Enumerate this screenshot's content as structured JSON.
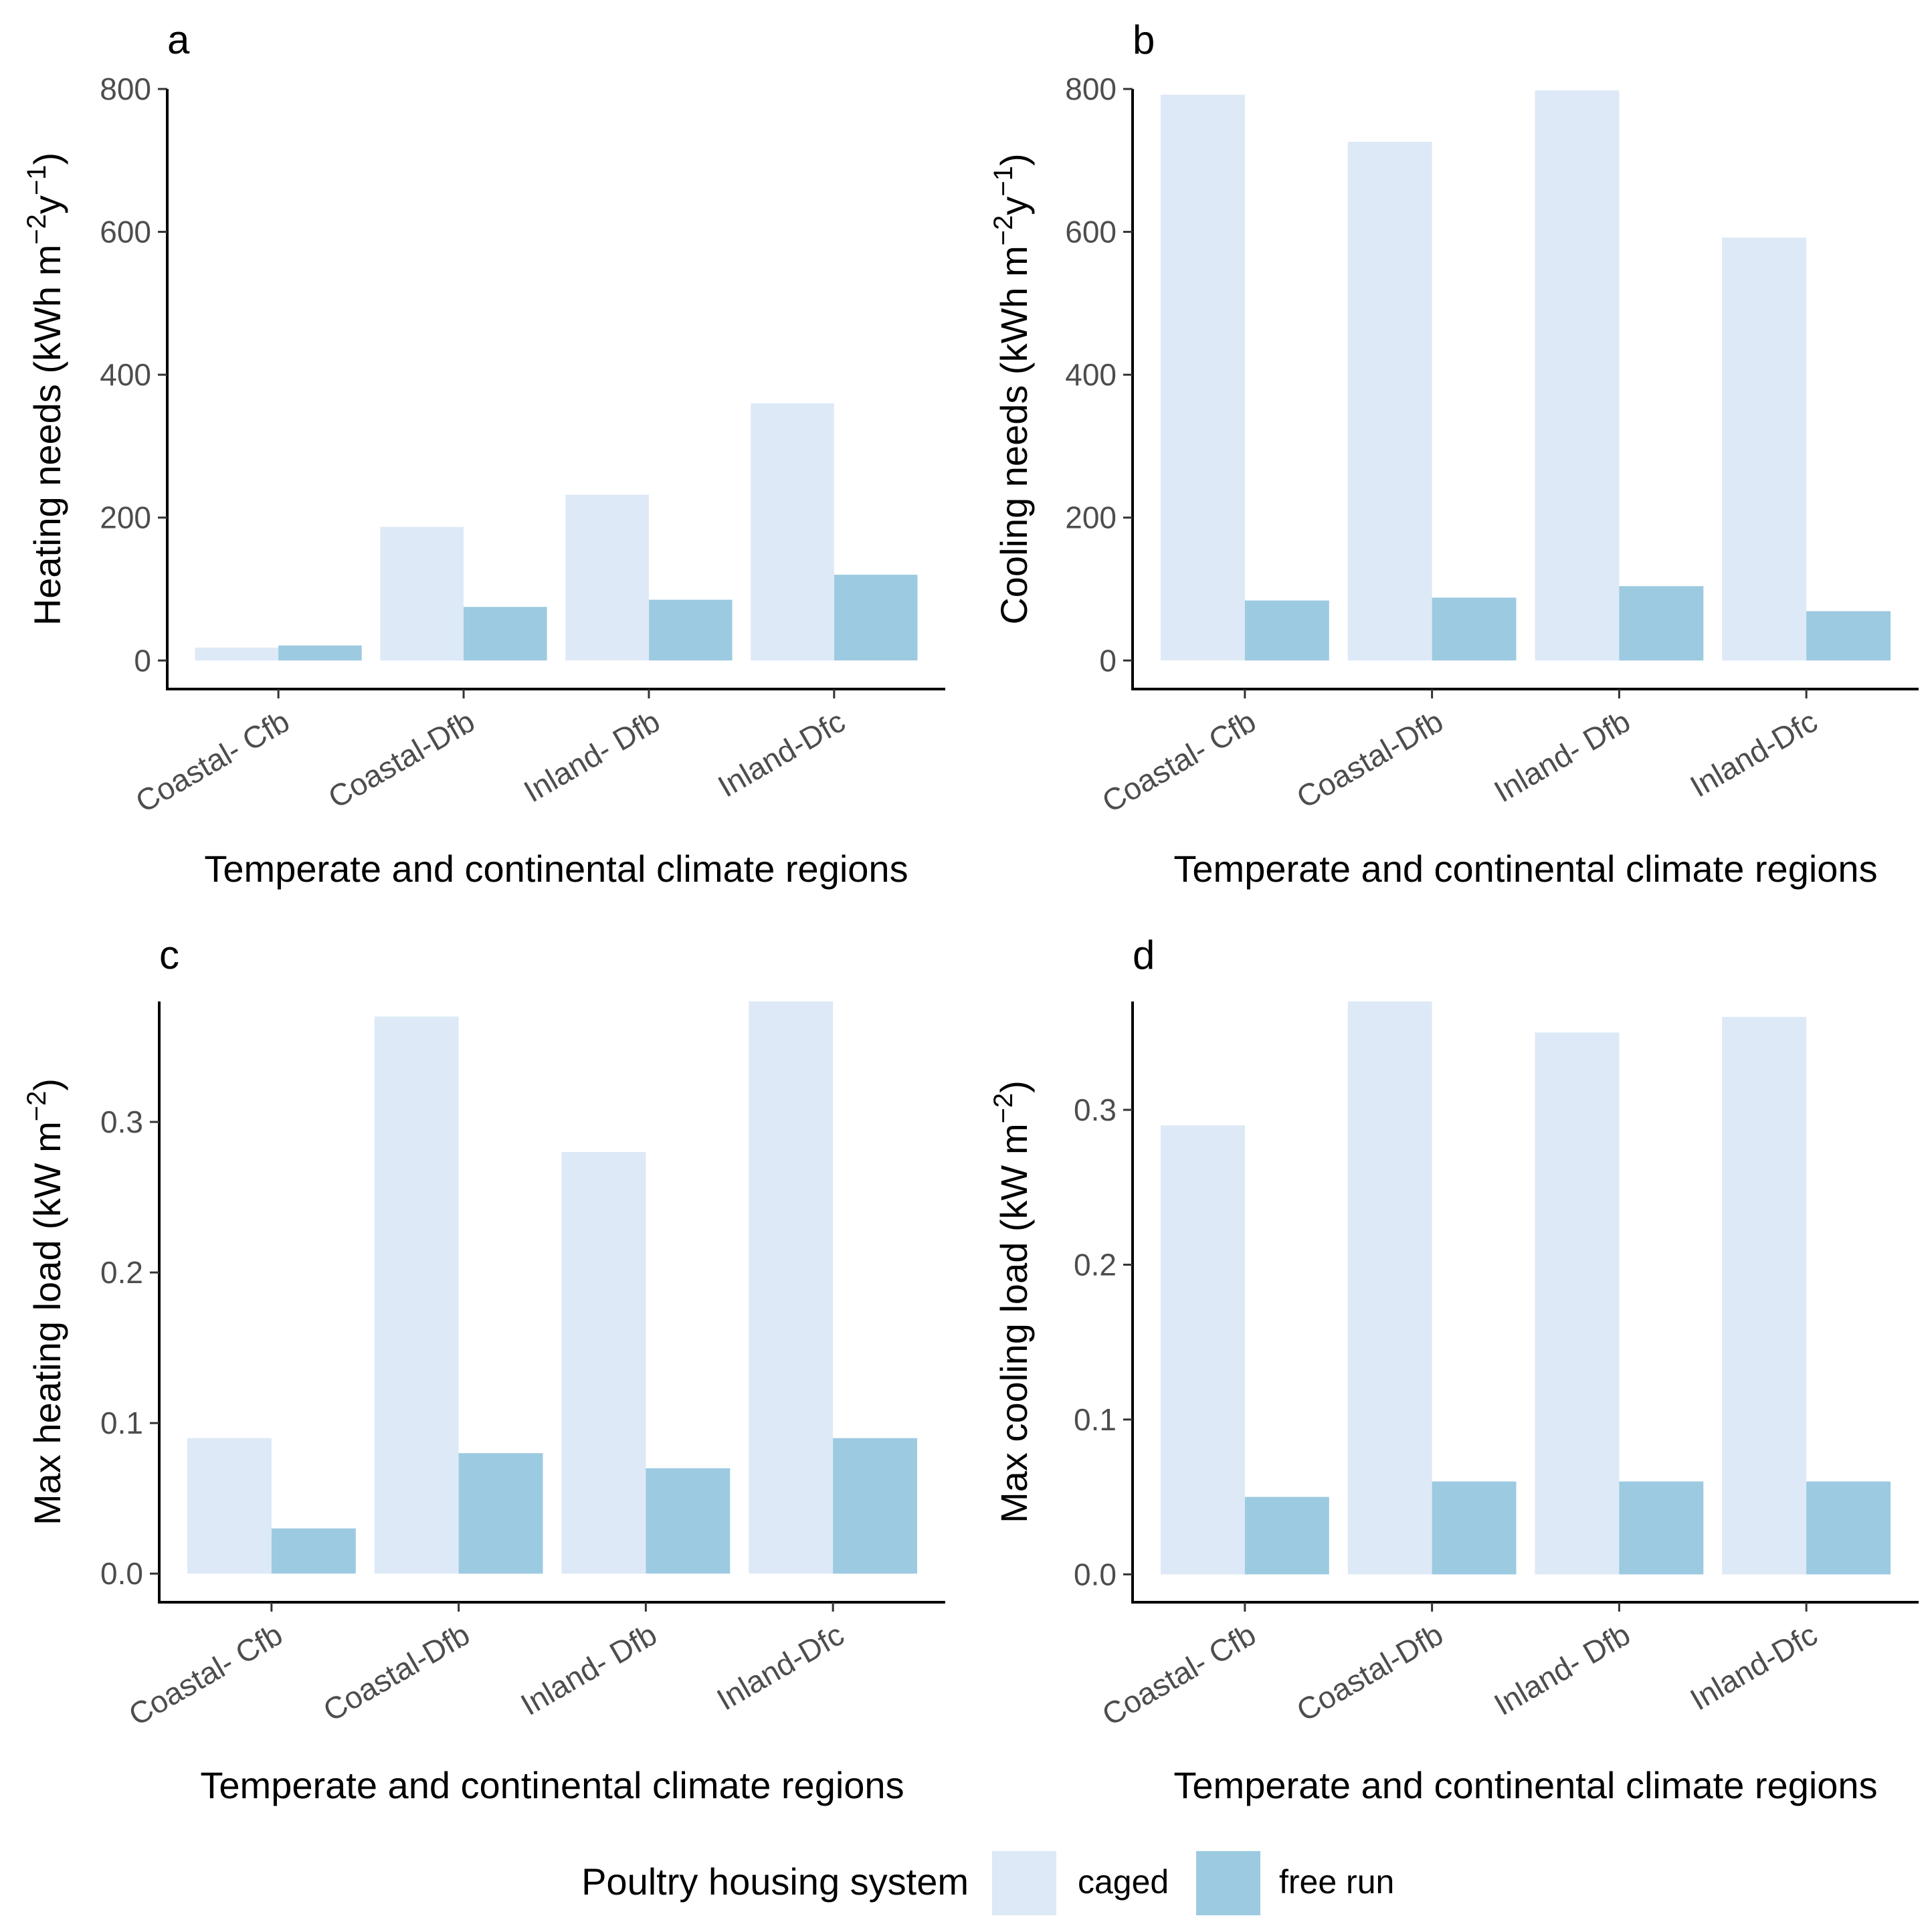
{
  "legend": {
    "title": "Poultry housing system",
    "items": [
      {
        "label": "caged",
        "color": "#dde9f6"
      },
      {
        "label": "free run",
        "color": "#9ccae1"
      }
    ]
  },
  "chart_data": [
    {
      "panel": "a",
      "type": "bar",
      "title": "",
      "xlabel": "Temperate and continental climate regions",
      "ylabel": "Heating needs (kWh m^-2 y^-1)",
      "ylabel_parts": {
        "pre": "Heating needs (kWh m",
        "sup1": "−2",
        "mid": "y",
        "sup2": "−1",
        "post": ")"
      },
      "categories": [
        "Coastal- Cfb",
        "Coastal-Dfb",
        "Inland- Dfb",
        "Inland-Dfc"
      ],
      "series": [
        {
          "name": "caged",
          "values": [
            18,
            187,
            232,
            360
          ]
        },
        {
          "name": "free run",
          "values": [
            21,
            75,
            85,
            120
          ]
        }
      ],
      "ylim": [
        -40,
        800
      ],
      "yticks": [
        0,
        200,
        400,
        600,
        800
      ],
      "ytick_labels": [
        "0",
        "200",
        "400",
        "600",
        "800"
      ]
    },
    {
      "panel": "b",
      "type": "bar",
      "title": "",
      "xlabel": "Temperate and continental climate regions",
      "ylabel": "Cooling needs (kWh m^-2 y^-1)",
      "ylabel_parts": {
        "pre": "Cooling needs (kWh m",
        "sup1": "−2",
        "mid": "y",
        "sup2": "−1",
        "post": ")"
      },
      "categories": [
        "Coastal- Cfb",
        "Coastal-Dfb",
        "Inland- Dfb",
        "Inland-Dfc"
      ],
      "series": [
        {
          "name": "caged",
          "values": [
            792,
            726,
            798,
            592
          ]
        },
        {
          "name": "free run",
          "values": [
            84,
            88,
            104,
            69
          ]
        }
      ],
      "ylim": [
        -40,
        800
      ],
      "yticks": [
        0,
        200,
        400,
        600,
        800
      ],
      "ytick_labels": [
        "0",
        "200",
        "400",
        "600",
        "800"
      ]
    },
    {
      "panel": "c",
      "type": "bar",
      "title": "",
      "xlabel": "Temperate and continental climate regions",
      "ylabel": "Max heating load (kW m^-2)",
      "ylabel_parts": {
        "pre": "Max heating load (kW m",
        "sup1": "−2",
        "mid": "",
        "sup2": "",
        "post": ")"
      },
      "categories": [
        "Coastal- Cfb",
        "Coastal-Dfb",
        "Inland- Dfb",
        "Inland-Dfc"
      ],
      "series": [
        {
          "name": "caged",
          "values": [
            0.09,
            0.37,
            0.28,
            0.38
          ]
        },
        {
          "name": "free run",
          "values": [
            0.03,
            0.08,
            0.07,
            0.09
          ]
        }
      ],
      "ylim": [
        -0.019,
        0.38
      ],
      "yticks": [
        0.0,
        0.1,
        0.2,
        0.3
      ],
      "ytick_labels": [
        "0.0",
        "0.1",
        "0.2",
        "0.3"
      ]
    },
    {
      "panel": "d",
      "type": "bar",
      "title": "",
      "xlabel": "Temperate and continental climate regions",
      "ylabel": "Max cooling load (kW m^-2)",
      "ylabel_parts": {
        "pre": "Max cooling load (kW m",
        "sup1": "−2",
        "mid": "",
        "sup2": "",
        "post": ")"
      },
      "categories": [
        "Coastal- Cfb",
        "Coastal-Dfb",
        "Inland- Dfb",
        "Inland-Dfc"
      ],
      "series": [
        {
          "name": "caged",
          "values": [
            0.29,
            0.37,
            0.35,
            0.36
          ]
        },
        {
          "name": "free run",
          "values": [
            0.05,
            0.06,
            0.06,
            0.06
          ]
        }
      ],
      "ylim": [
        -0.018,
        0.37
      ],
      "yticks": [
        0.0,
        0.1,
        0.2,
        0.3
      ],
      "ytick_labels": [
        "0.0",
        "0.1",
        "0.2",
        "0.3"
      ]
    }
  ]
}
